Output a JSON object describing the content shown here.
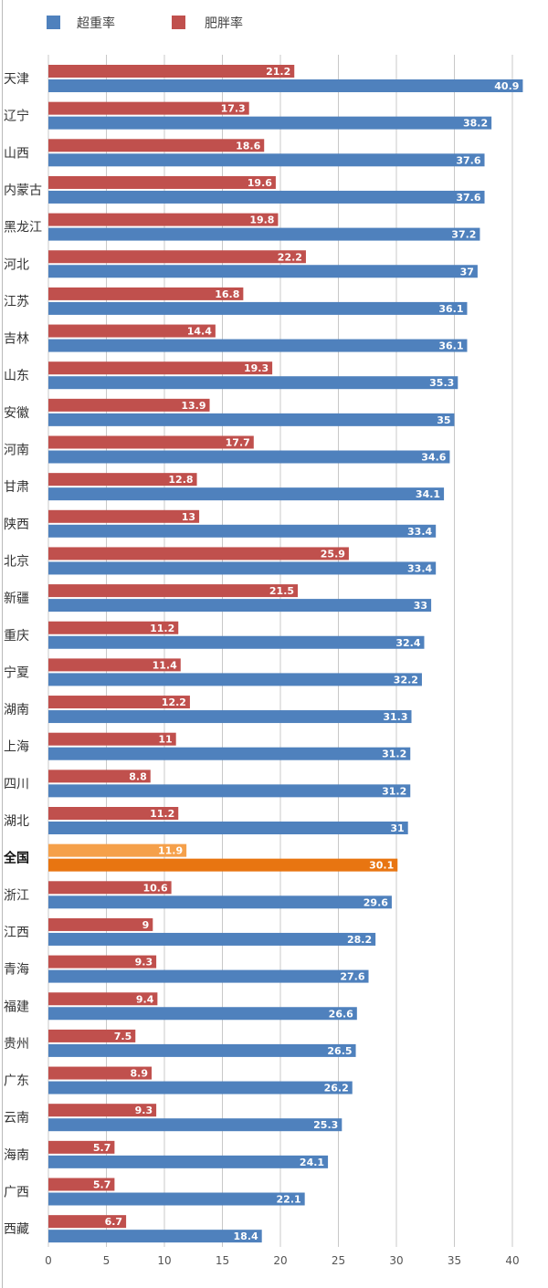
{
  "chart_data": {
    "type": "bar",
    "orientation": "horizontal",
    "categories": [
      "天津",
      "辽宁",
      "山西",
      "内蒙古",
      "黑龙江",
      "河北",
      "江苏",
      "吉林",
      "山东",
      "安徽",
      "河南",
      "甘肃",
      "陕西",
      "北京",
      "新疆",
      "重庆",
      "宁夏",
      "湖南",
      "上海",
      "四川",
      "湖北",
      "全国",
      "浙江",
      "江西",
      "青海",
      "福建",
      "贵州",
      "广东",
      "云南",
      "海南",
      "广西",
      "西藏"
    ],
    "highlight_category": "全国",
    "series": [
      {
        "name": "肥胖率",
        "color": "#c0504d",
        "highlight_color": "#f5a04a",
        "values": [
          21.2,
          17.3,
          18.6,
          19.6,
          19.8,
          22.2,
          16.8,
          14.4,
          19.3,
          13.9,
          17.7,
          12.8,
          13,
          25.9,
          21.5,
          11.2,
          11.4,
          12.2,
          11,
          8.8,
          11.2,
          11.9,
          10.6,
          9,
          9.3,
          9.4,
          7.5,
          8.9,
          9.3,
          5.7,
          5.7,
          6.7
        ]
      },
      {
        "name": "超重率",
        "color": "#4f81bd",
        "highlight_color": "#e87511",
        "values": [
          40.9,
          38.2,
          37.6,
          37.6,
          37.2,
          37,
          36.1,
          36.1,
          35.3,
          35,
          34.6,
          34.1,
          33.4,
          33.4,
          33,
          32.4,
          32.2,
          31.3,
          31.2,
          31.2,
          31,
          30.1,
          29.6,
          28.2,
          27.6,
          26.6,
          26.5,
          26.2,
          25.3,
          24.1,
          22.1,
          18.4
        ]
      }
    ],
    "legend": [
      {
        "name": "超重率",
        "color": "#4f81bd"
      },
      {
        "name": "肥胖率",
        "color": "#c0504d"
      }
    ],
    "legend_placement": "top-left",
    "xlim": [
      0,
      40
    ],
    "xticks": [
      "0",
      "5",
      "10",
      "15",
      "20",
      "25",
      "30",
      "35",
      "40"
    ],
    "grid": true,
    "title": "",
    "xlabel": "",
    "ylabel": ""
  }
}
